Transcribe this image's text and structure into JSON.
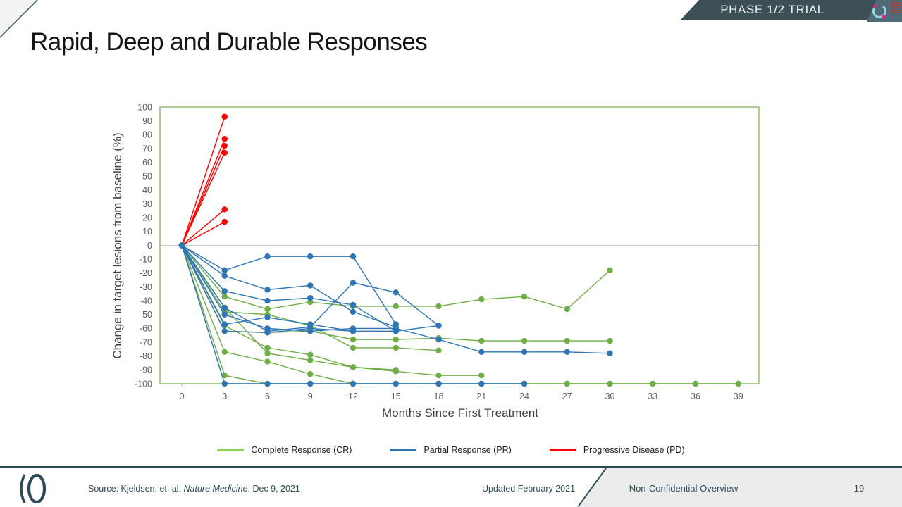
{
  "banner": {
    "label": "PHASE 1/2 TRIAL"
  },
  "title": "Rapid, Deep and Durable Responses",
  "chart_data": {
    "type": "line",
    "title": "",
    "xlabel": "Months Since First Treatment",
    "ylabel": "Change in target lesions from baseline (%)",
    "x_ticks": [
      0,
      3,
      6,
      9,
      12,
      15,
      18,
      21,
      24,
      27,
      30,
      33,
      36,
      39
    ],
    "xlim": [
      0,
      39
    ],
    "ylim": [
      -100,
      100
    ],
    "y_tick_step": 10,
    "grid": "zero-baseline-only",
    "frame_color": "#8ec06c",
    "zero_line_color": "#c6c6c6",
    "tick_color": "#595959",
    "axis_title_color": "#3f3f3f",
    "legend_position": "bottom",
    "legend": [
      {
        "label": "Complete Response (CR)",
        "color": "#92d050"
      },
      {
        "label": "Partial Response (PR)",
        "color": "#2e75b6"
      },
      {
        "label": "Progressive Disease (PD)",
        "color": "#ff0000"
      }
    ],
    "series": [
      {
        "name": "CR-1",
        "group": "Complete Response (CR)",
        "color": "#6fad47",
        "x": [
          0,
          3,
          6,
          9,
          12,
          15,
          18,
          21
        ],
        "y": [
          0,
          -45,
          -78,
          -83,
          -88,
          -91,
          -94,
          -94
        ]
      },
      {
        "name": "CR-2",
        "group": "Complete Response (CR)",
        "color": "#6fad47",
        "x": [
          0,
          3,
          6,
          9,
          12,
          15,
          18,
          21,
          24,
          27,
          30
        ],
        "y": [
          0,
          -37,
          -46,
          -41,
          -44,
          -44,
          -44,
          -39,
          -37,
          -46,
          -18
        ]
      },
      {
        "name": "CR-3",
        "group": "Complete Response (CR)",
        "color": "#6fad47",
        "x": [
          0,
          3,
          6,
          9,
          12,
          15,
          18,
          21,
          24,
          27,
          30
        ],
        "y": [
          0,
          -62,
          -63,
          -62,
          -68,
          -68,
          -67,
          -69,
          -69,
          -69,
          -69
        ]
      },
      {
        "name": "CR-4",
        "group": "Complete Response (CR)",
        "color": "#6fad47",
        "x": [
          0,
          3,
          6,
          9,
          12,
          15,
          18
        ],
        "y": [
          0,
          -48,
          -50,
          -58,
          -74,
          -74,
          -76
        ]
      },
      {
        "name": "CR-5",
        "group": "Complete Response (CR)",
        "color": "#6fad47",
        "x": [
          0,
          3,
          6,
          9,
          12,
          15,
          18,
          21,
          24,
          27,
          30,
          33,
          36,
          39
        ],
        "y": [
          0,
          -77,
          -84,
          -93,
          -100,
          -100,
          -100,
          -100,
          -100,
          -100,
          -100,
          -100,
          -100,
          -100
        ]
      },
      {
        "name": "CR-6",
        "group": "Complete Response (CR)",
        "color": "#6fad47",
        "x": [
          0,
          3,
          6,
          9
        ],
        "y": [
          0,
          -94,
          -100,
          -100
        ]
      },
      {
        "name": "CR-7",
        "group": "Complete Response (CR)",
        "color": "#6fad47",
        "x": [
          0,
          3,
          6,
          9,
          12,
          15
        ],
        "y": [
          0,
          -58,
          -74,
          -79,
          -88,
          -90
        ]
      },
      {
        "name": "PD-1",
        "group": "Progressive Disease (PD)",
        "color": "#ff0000",
        "x": [
          0,
          3
        ],
        "y": [
          0,
          93
        ]
      },
      {
        "name": "PD-2",
        "group": "Progressive Disease (PD)",
        "color": "#ff0000",
        "x": [
          0,
          3
        ],
        "y": [
          0,
          77
        ]
      },
      {
        "name": "PD-3",
        "group": "Progressive Disease (PD)",
        "color": "#ff0000",
        "x": [
          0,
          3
        ],
        "y": [
          0,
          72
        ]
      },
      {
        "name": "PD-4",
        "group": "Progressive Disease (PD)",
        "color": "#ff0000",
        "x": [
          0,
          3
        ],
        "y": [
          0,
          67
        ]
      },
      {
        "name": "PD-5",
        "group": "Progressive Disease (PD)",
        "color": "#ff0000",
        "x": [
          0,
          3
        ],
        "y": [
          0,
          26
        ]
      },
      {
        "name": "PD-6",
        "group": "Progressive Disease (PD)",
        "color": "#ff0000",
        "x": [
          0,
          3
        ],
        "y": [
          0,
          17
        ]
      },
      {
        "name": "PR-1",
        "group": "Partial Response (PR)",
        "color": "#2e75b6",
        "x": [
          0,
          3,
          6,
          9,
          12,
          15,
          18,
          21,
          24
        ],
        "y": [
          0,
          -100,
          -100,
          -100,
          -100,
          -100,
          -100,
          -100,
          -100
        ]
      },
      {
        "name": "PR-2",
        "group": "Partial Response (PR)",
        "color": "#2e75b6",
        "x": [
          0,
          3,
          6,
          9,
          12,
          15
        ],
        "y": [
          0,
          -18,
          -8,
          -8,
          -8,
          -57
        ]
      },
      {
        "name": "PR-3",
        "group": "Partial Response (PR)",
        "color": "#2e75b6",
        "x": [
          0,
          3,
          6,
          9,
          12,
          15
        ],
        "y": [
          0,
          -22,
          -32,
          -29,
          -48,
          -59
        ]
      },
      {
        "name": "PR-4",
        "group": "Partial Response (PR)",
        "color": "#2e75b6",
        "x": [
          0,
          3,
          6,
          9,
          12,
          15,
          18
        ],
        "y": [
          0,
          -45,
          -62,
          -59,
          -27,
          -34,
          -58
        ]
      },
      {
        "name": "PR-5",
        "group": "Partial Response (PR)",
        "color": "#2e75b6",
        "x": [
          0,
          3,
          6,
          9,
          12,
          15,
          18,
          21,
          24,
          27,
          30
        ],
        "y": [
          0,
          -50,
          -60,
          -62,
          -60,
          -60,
          -68,
          -77,
          -77,
          -77,
          -78
        ]
      },
      {
        "name": "PR-6",
        "group": "Partial Response (PR)",
        "color": "#2e75b6",
        "x": [
          0,
          3,
          6,
          9,
          12,
          15,
          18
        ],
        "y": [
          0,
          -57,
          -52,
          -57,
          -62,
          -62,
          -58
        ]
      },
      {
        "name": "PR-7",
        "group": "Partial Response (PR)",
        "color": "#2e75b6",
        "x": [
          0,
          3,
          6,
          9,
          12,
          15
        ],
        "y": [
          0,
          -33,
          -40,
          -38,
          -43,
          -62
        ]
      },
      {
        "name": "PR-8",
        "group": "Partial Response (PR)",
        "color": "#2e75b6",
        "x": [
          0,
          3,
          6,
          9,
          12
        ],
        "y": [
          0,
          -62,
          -63,
          -60,
          -62
        ]
      }
    ]
  },
  "footer": {
    "source_prefix": "Source: Kjeldsen, et. al. ",
    "source_italic": "Nature Medicine",
    "source_suffix": "; Dec 9, 2021",
    "updated": "Updated February 2021",
    "classification": "Non-Confidential Overview",
    "page_number": "19"
  }
}
